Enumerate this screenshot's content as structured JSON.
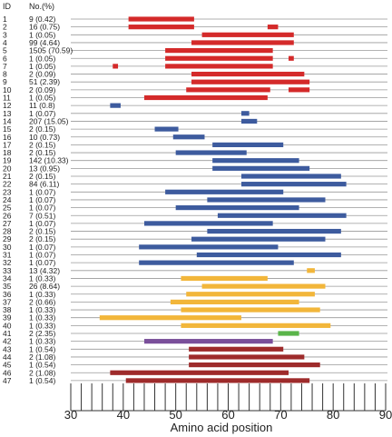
{
  "chart_data": {
    "type": "range-bar",
    "xlabel": "Amino acid position",
    "xlim": [
      30,
      90
    ],
    "x_ticks": [
      30,
      40,
      50,
      60,
      70,
      80,
      90
    ],
    "header": {
      "id": "ID",
      "count": "No.(%)"
    },
    "colors": {
      "red": "#d42a2a",
      "blue": "#3d5b9e",
      "orange": "#f2b63a",
      "purple": "#7a4f9a",
      "green": "#5ab54a",
      "darkred": "#9e2b2b"
    },
    "rows": [
      {
        "id": "1",
        "label": "9 (0.42)",
        "color": "red",
        "segments": [
          [
            41,
            53.5
          ]
        ]
      },
      {
        "id": "2",
        "label": "16 (0.75)",
        "color": "red",
        "segments": [
          [
            41,
            53.5
          ],
          [
            67.5,
            69.5
          ]
        ]
      },
      {
        "id": "3",
        "label": "1 (0.05)",
        "color": "red",
        "segments": [
          [
            55,
            72.5
          ]
        ]
      },
      {
        "id": "4",
        "label": "99 (4.64)",
        "color": "red",
        "segments": [
          [
            53,
            72.5
          ]
        ]
      },
      {
        "id": "5",
        "label": "1505 (70.59)",
        "color": "red",
        "segments": [
          [
            48,
            68.5
          ]
        ]
      },
      {
        "id": "6",
        "label": "1 (0.05)",
        "color": "red",
        "segments": [
          [
            48,
            68.5
          ],
          [
            71.5,
            72.5
          ]
        ]
      },
      {
        "id": "7",
        "label": "1 (0.05)",
        "color": "red",
        "segments": [
          [
            38,
            39
          ],
          [
            48,
            68.5
          ]
        ]
      },
      {
        "id": "8",
        "label": "2 (0.09)",
        "color": "red",
        "segments": [
          [
            53,
            74.5
          ]
        ]
      },
      {
        "id": "9",
        "label": "51 (2.39)",
        "color": "red",
        "segments": [
          [
            53,
            75.5
          ]
        ]
      },
      {
        "id": "10",
        "label": "2 (0.09)",
        "color": "red",
        "segments": [
          [
            52,
            68
          ],
          [
            71.5,
            75.5
          ]
        ]
      },
      {
        "id": "11",
        "label": "1 (0.05)",
        "color": "red",
        "segments": [
          [
            44,
            67.5
          ]
        ]
      },
      {
        "id": "12",
        "label": "11 (0.8)",
        "color": "blue",
        "segments": [
          [
            37.5,
            39.5
          ]
        ]
      },
      {
        "id": "13",
        "label": "1 (0.07)",
        "color": "blue",
        "segments": [
          [
            62.5,
            64
          ]
        ]
      },
      {
        "id": "14",
        "label": "207 (15.05)",
        "color": "blue",
        "segments": [
          [
            62.5,
            65.5
          ]
        ]
      },
      {
        "id": "15",
        "label": "2 (0.15)",
        "color": "blue",
        "segments": [
          [
            46,
            50.5
          ]
        ]
      },
      {
        "id": "16",
        "label": "10 (0.73)",
        "color": "blue",
        "segments": [
          [
            49.5,
            55.5
          ]
        ]
      },
      {
        "id": "17",
        "label": "2 (0.15)",
        "color": "blue",
        "segments": [
          [
            57,
            70.5
          ]
        ]
      },
      {
        "id": "18",
        "label": "2 (0.15)",
        "color": "blue",
        "segments": [
          [
            50,
            63.5
          ]
        ]
      },
      {
        "id": "19",
        "label": "142 (10.33)",
        "color": "blue",
        "segments": [
          [
            57,
            73.5
          ]
        ]
      },
      {
        "id": "20",
        "label": "13 (0.95)",
        "color": "blue",
        "segments": [
          [
            57,
            75.5
          ]
        ]
      },
      {
        "id": "21",
        "label": "2 (0.15)",
        "color": "blue",
        "segments": [
          [
            62.5,
            81.5
          ]
        ]
      },
      {
        "id": "22",
        "label": "84 (6.11)",
        "color": "blue",
        "segments": [
          [
            62.5,
            82.5
          ]
        ]
      },
      {
        "id": "23",
        "label": "1 (0.07)",
        "color": "blue",
        "segments": [
          [
            48,
            70.5
          ]
        ]
      },
      {
        "id": "24",
        "label": "1 (0.07)",
        "color": "blue",
        "segments": [
          [
            56,
            78.5
          ]
        ]
      },
      {
        "id": "25",
        "label": "1 (0.07)",
        "color": "blue",
        "segments": [
          [
            50,
            73.5
          ]
        ]
      },
      {
        "id": "26",
        "label": "7 (0.51)",
        "color": "blue",
        "segments": [
          [
            58,
            82.5
          ]
        ]
      },
      {
        "id": "27",
        "label": "1 (0.07)",
        "color": "blue",
        "segments": [
          [
            44,
            68.5
          ]
        ]
      },
      {
        "id": "28",
        "label": "2 (0.15)",
        "color": "blue",
        "segments": [
          [
            56,
            81.5
          ]
        ]
      },
      {
        "id": "29",
        "label": "2 (0.15)",
        "color": "blue",
        "segments": [
          [
            53,
            78.5
          ]
        ]
      },
      {
        "id": "30",
        "label": "1 (0.07)",
        "color": "blue",
        "segments": [
          [
            43,
            69.5
          ]
        ]
      },
      {
        "id": "31",
        "label": "1 (0.07)",
        "color": "blue",
        "segments": [
          [
            54,
            81.5
          ]
        ]
      },
      {
        "id": "32",
        "label": "1 (0.07)",
        "color": "blue",
        "segments": [
          [
            43,
            72.5
          ]
        ]
      },
      {
        "id": "33",
        "label": "13 (4.32)",
        "color": "orange",
        "segments": [
          [
            75,
            76.5
          ]
        ]
      },
      {
        "id": "34",
        "label": "1 (0.33)",
        "color": "orange",
        "segments": [
          [
            51,
            67.5
          ]
        ]
      },
      {
        "id": "35",
        "label": "26 (8.64)",
        "color": "orange",
        "segments": [
          [
            55,
            78.5
          ]
        ]
      },
      {
        "id": "36",
        "label": "1 (0.33)",
        "color": "orange",
        "segments": [
          [
            52,
            76.5
          ]
        ]
      },
      {
        "id": "37",
        "label": "2 (0.66)",
        "color": "orange",
        "segments": [
          [
            49,
            73.5
          ]
        ]
      },
      {
        "id": "38",
        "label": "1 (0.33)",
        "color": "orange",
        "segments": [
          [
            51,
            77.5
          ]
        ]
      },
      {
        "id": "39",
        "label": "1 (0.33)",
        "color": "orange",
        "segments": [
          [
            35.5,
            62.5
          ]
        ]
      },
      {
        "id": "40",
        "label": "1 (0.33)",
        "color": "orange",
        "segments": [
          [
            51,
            79.5
          ]
        ]
      },
      {
        "id": "41",
        "label": "2 (2.35)",
        "color": "green",
        "segments": [
          [
            69.5,
            73.5
          ]
        ]
      },
      {
        "id": "42",
        "label": "1 (0.33)",
        "color": "purple",
        "segments": [
          [
            44,
            68.5
          ]
        ]
      },
      {
        "id": "43",
        "label": "1 (0.54)",
        "color": "darkred",
        "segments": [
          [
            52.5,
            70.5
          ]
        ]
      },
      {
        "id": "44",
        "label": "2 (1.08)",
        "color": "darkred",
        "segments": [
          [
            52.5,
            74.5
          ]
        ]
      },
      {
        "id": "45",
        "label": "1 (0.54)",
        "color": "darkred",
        "segments": [
          [
            52.5,
            77.5
          ]
        ]
      },
      {
        "id": "46",
        "label": "2 (1.08)",
        "color": "darkred",
        "segments": [
          [
            37.5,
            71.5
          ]
        ]
      },
      {
        "id": "47",
        "label": "1 (0.54)",
        "color": "darkred",
        "segments": [
          [
            40.5,
            75.5
          ]
        ]
      }
    ]
  }
}
